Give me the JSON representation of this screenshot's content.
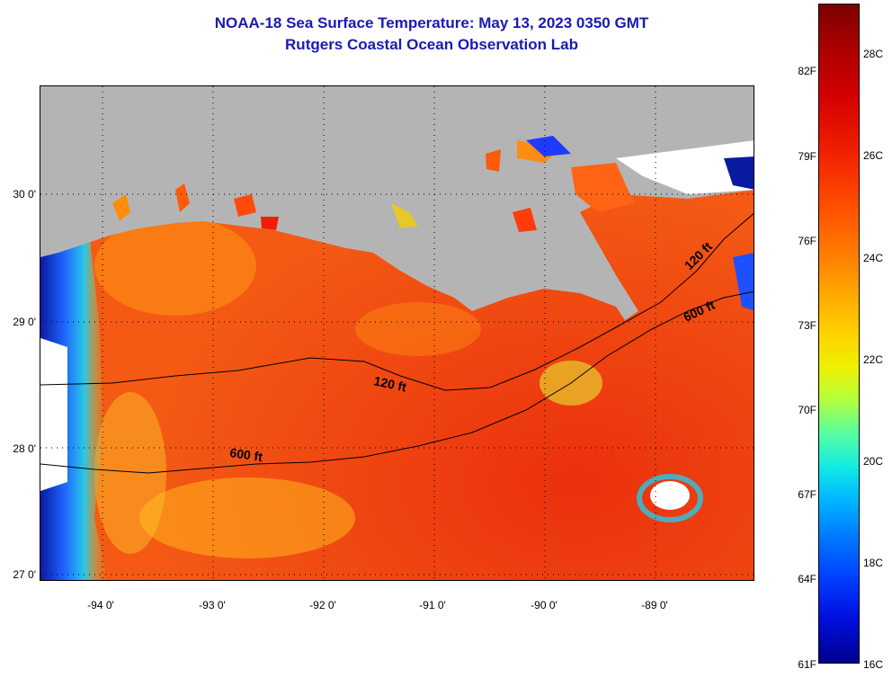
{
  "title": {
    "line1": "NOAA-18 Sea Surface Temperature:  May 13, 2023 0350 GMT",
    "line2": "Rutgers Coastal Ocean Observation Lab"
  },
  "map": {
    "lat_labels": [
      "30 0'",
      "29 0'",
      "28 0'",
      "27 0'"
    ],
    "lon_labels": [
      "-94 0'",
      "-93 0'",
      "-92 0'",
      "-91 0'",
      "-90 0'",
      "-89 0'"
    ],
    "contour_labels": [
      "120 ft",
      "600 ft",
      "120 ft",
      "600 ft"
    ],
    "colors": {
      "land": "#b4b4b4",
      "ocean_warm": "#f05014",
      "frame": "#000000"
    }
  },
  "colorbar": {
    "fahrenheit": [
      "82F",
      "79F",
      "76F",
      "73F",
      "70F",
      "67F",
      "64F",
      "61F"
    ],
    "celsius": [
      "28C",
      "26C",
      "24C",
      "22C",
      "20C",
      "18C",
      "16C"
    ]
  }
}
